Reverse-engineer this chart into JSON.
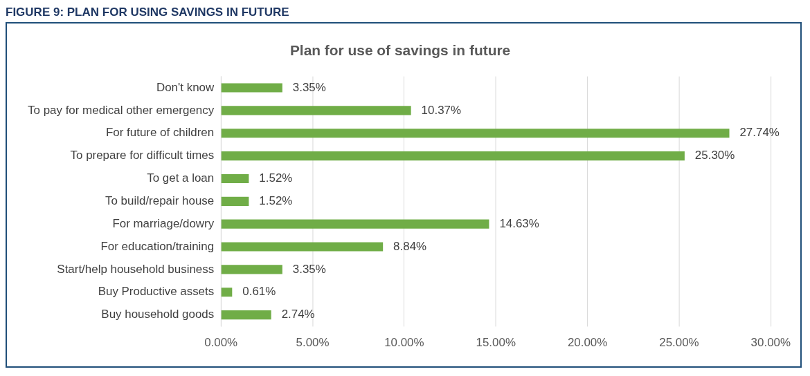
{
  "chart_data": {
    "type": "bar",
    "orientation": "horizontal",
    "title": "Plan for use of savings in future",
    "annotations": [
      "FIGURE 9: PLAN FOR USING SAVINGS IN FUTURE"
    ],
    "categories": [
      "Don't know",
      "To pay for medical other emergency",
      "For future of children",
      "To prepare for difficult times",
      "To get a loan",
      "To build/repair house",
      "For marriage/dowry",
      "For education/training",
      "Start/help household business",
      "Buy Productive assets",
      "Buy household goods"
    ],
    "values": [
      3.35,
      10.37,
      27.74,
      25.3,
      1.52,
      1.52,
      14.63,
      8.84,
      3.35,
      0.61,
      2.74
    ],
    "value_labels": [
      "3.35%",
      "10.37%",
      "27.74%",
      "25.30%",
      "1.52%",
      "1.52%",
      "14.63%",
      "8.84%",
      "3.35%",
      "0.61%",
      "2.74%"
    ],
    "color": "#70ad47",
    "xlim": [
      0,
      30
    ],
    "xticks": [
      {
        "value": 0,
        "label": "0.00%"
      },
      {
        "value": 5,
        "label": "5.00%"
      },
      {
        "value": 10,
        "label": "10.00%"
      },
      {
        "value": 15,
        "label": "15.00%"
      },
      {
        "value": 20,
        "label": "20.00%"
      },
      {
        "value": 25,
        "label": "25.00%"
      },
      {
        "value": 30,
        "label": "30.00%"
      }
    ],
    "grid": "x",
    "legend": false
  }
}
